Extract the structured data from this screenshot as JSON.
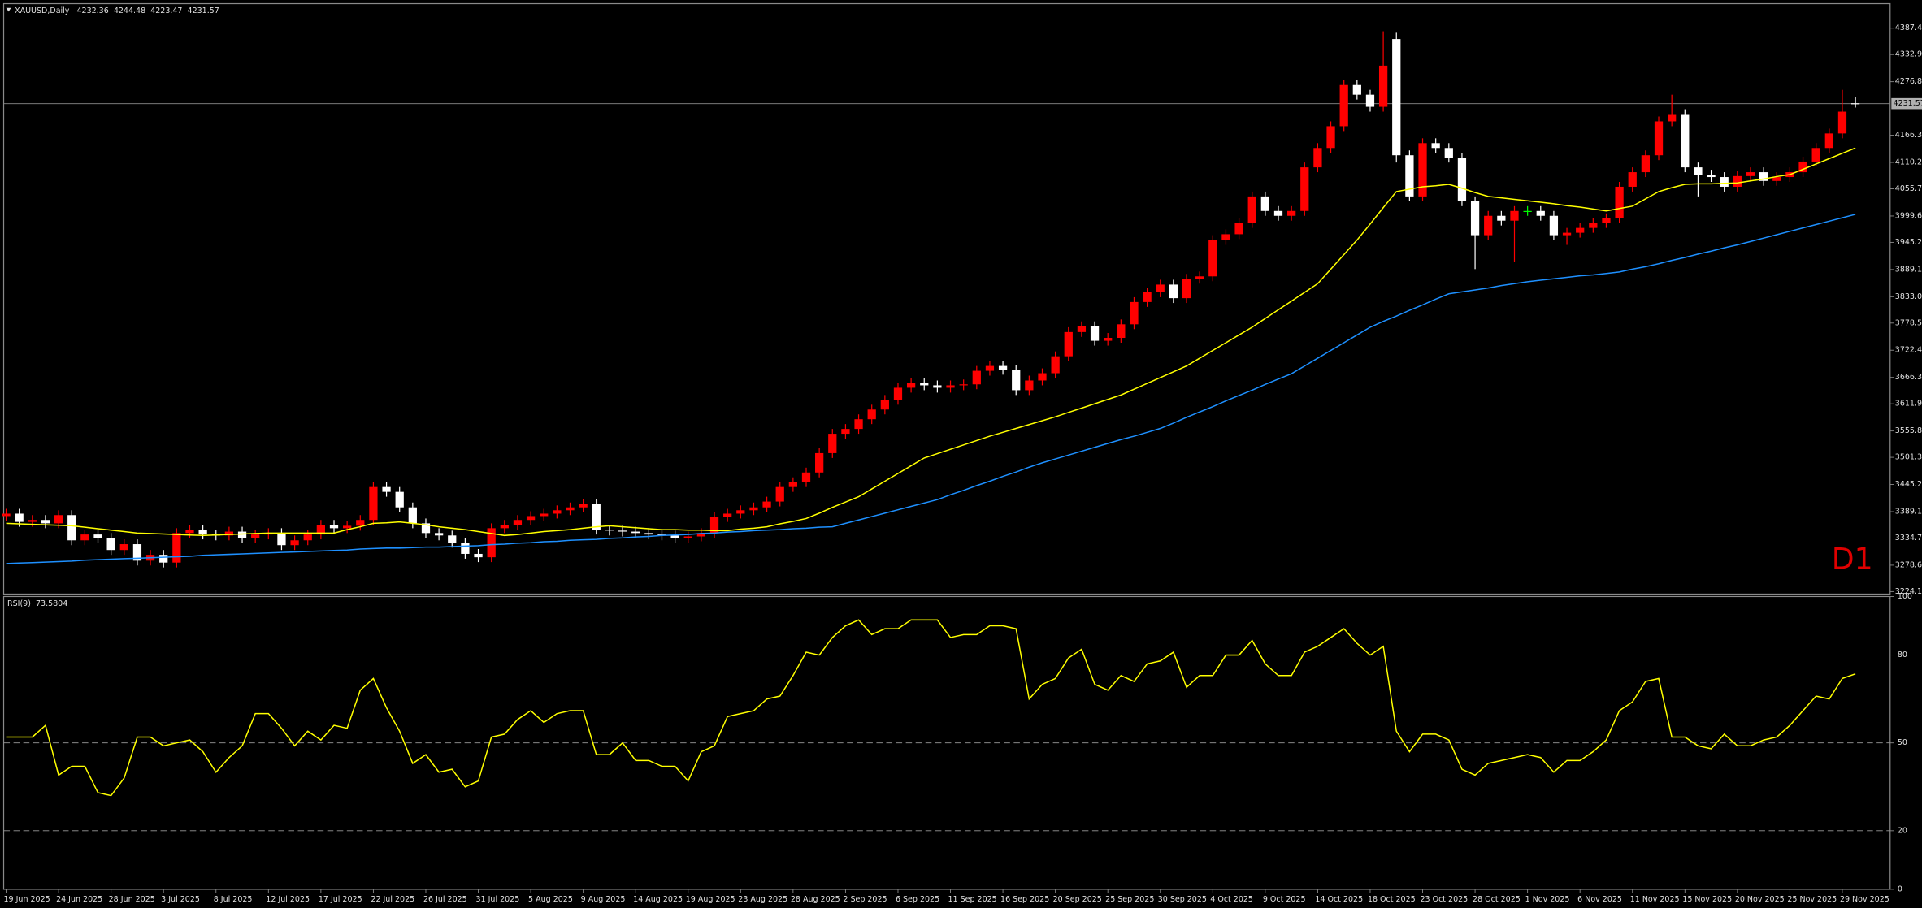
{
  "chart_data": [
    {
      "type": "candlestick",
      "title": "XAUUSD,Daily",
      "annotation": "D1",
      "annotation_color": "#e00000",
      "up_color": "#ff0000",
      "down_color": "#ffffff",
      "doji_color": "#00ff00",
      "last_price": 4231.57,
      "ylim": [
        3219,
        4433
      ],
      "yticks": [
        {
          "value": 4387.4,
          "label": "4387.40"
        },
        {
          "value": 4332.95,
          "label": "4332.95"
        },
        {
          "value": 4276.85,
          "label": "4276.85"
        },
        {
          "value": 4166.3,
          "label": "4166.30"
        },
        {
          "value": 4110.2,
          "label": "4110.20"
        },
        {
          "value": 4055.75,
          "label": "4055.75"
        },
        {
          "value": 3999.65,
          "label": "3999.65"
        },
        {
          "value": 3945.2,
          "label": "3945.20"
        },
        {
          "value": 3889.1,
          "label": "3889.10"
        },
        {
          "value": 3833,
          "label": "3833.00"
        },
        {
          "value": 3778.55,
          "label": "3778.55"
        },
        {
          "value": 3722.45,
          "label": "3722.45"
        },
        {
          "value": 3666.35,
          "label": "3666.35"
        },
        {
          "value": 3611.9,
          "label": "3611.90"
        },
        {
          "value": 3555.8,
          "label": "3555.80"
        },
        {
          "value": 3501.35,
          "label": "3501.35"
        },
        {
          "value": 3445.25,
          "label": "3445.25"
        },
        {
          "value": 3389.15,
          "label": "3389.15"
        },
        {
          "value": 3334.7,
          "label": "3334.70"
        },
        {
          "value": 3278.6,
          "label": "3278.60"
        },
        {
          "value": 3224.15,
          "label": "3224.15"
        }
      ],
      "categories": [
        "19 Jun 2025",
        null,
        null,
        null,
        "24 Jun 2025",
        null,
        null,
        null,
        "28 Jun 2025",
        null,
        null,
        null,
        "3 Jul 2025",
        null,
        null,
        null,
        "8 Jul 2025",
        null,
        null,
        null,
        "12 Jul 2025",
        null,
        null,
        null,
        "17 Jul 2025",
        null,
        null,
        null,
        "22 Jul 2025",
        null,
        null,
        null,
        "26 Jul 2025",
        null,
        null,
        null,
        "31 Jul 2025",
        null,
        null,
        null,
        "5 Aug 2025",
        null,
        null,
        null,
        "9 Aug 2025",
        null,
        null,
        null,
        "14 Aug 2025",
        null,
        null,
        null,
        "19 Aug 2025",
        null,
        null,
        null,
        "23 Aug 2025",
        null,
        null,
        null,
        "28 Aug 2025",
        null,
        null,
        null,
        "2 Sep 2025",
        null,
        null,
        null,
        "6 Sep 2025",
        null,
        null,
        null,
        "11 Sep 2025",
        null,
        null,
        null,
        "16 Sep 2025",
        null,
        null,
        null,
        "20 Sep 2025",
        null,
        null,
        null,
        "25 Sep 2025",
        null,
        null,
        null,
        "30 Sep 2025",
        null,
        null,
        null,
        "4 Oct 2025",
        null,
        null,
        null,
        "9 Oct 2025",
        null,
        null,
        null,
        "14 Oct 2025",
        null,
        null,
        null,
        "18 Oct 2025",
        null,
        null,
        null,
        "23 Oct 2025",
        null,
        null,
        null,
        "28 Oct 2025",
        null,
        null,
        null,
        "1 Nov 2025",
        null,
        null,
        null,
        "6 Nov 2025",
        null,
        null,
        null,
        "11 Nov 2025",
        null,
        null,
        null,
        "15 Nov 2025",
        null,
        null,
        null,
        "20 Nov 2025",
        null,
        null,
        null,
        "25 Nov 2025",
        null,
        null,
        null,
        "29 Nov 2025",
        null
      ],
      "open": [
        3380,
        3385,
        3368,
        3372,
        3365,
        3382,
        3330,
        3342,
        3335,
        3310,
        3322,
        3288,
        3300,
        3284,
        3345,
        3352,
        3342,
        3340,
        3348,
        3335,
        3342,
        3345,
        3320,
        3330,
        3342,
        3362,
        3355,
        3360,
        3372,
        3440,
        3430,
        3398,
        3365,
        3345,
        3340,
        3325,
        3302,
        3295,
        3355,
        3362,
        3372,
        3380,
        3385,
        3392,
        3398,
        3405,
        3352,
        3350,
        3348,
        3345,
        3342,
        3340,
        3335,
        3338,
        3345,
        3378,
        3385,
        3392,
        3398,
        3410,
        3440,
        3450,
        3470,
        3510,
        3550,
        3560,
        3580,
        3600,
        3620,
        3645,
        3655,
        3650,
        3645,
        3650,
        3652,
        3680,
        3690,
        3682,
        3640,
        3660,
        3675,
        3710,
        3760,
        3772,
        3742,
        3748,
        3776,
        3822,
        3842,
        3858,
        3830,
        3870,
        3875,
        3950,
        3962,
        3985,
        4040,
        4010,
        4000,
        4010,
        4100,
        4140,
        4185,
        4270,
        4250,
        4225,
        4365,
        4125,
        4040,
        4150,
        4140,
        4120,
        4030,
        3960,
        4000,
        3990,
        4010,
        4010,
        4000,
        3960,
        3965,
        3975,
        3985,
        3995,
        4060,
        4090,
        4125,
        4195,
        4210,
        4100,
        4085,
        4080,
        4060,
        4082,
        4090,
        4072,
        4080,
        4090,
        4112,
        4140,
        4170,
        4232.36
      ],
      "high": [
        3395,
        3395,
        3382,
        3382,
        3392,
        3392,
        3352,
        3352,
        3345,
        3332,
        3332,
        3310,
        3310,
        3355,
        3362,
        3362,
        3352,
        3358,
        3358,
        3352,
        3355,
        3355,
        3340,
        3352,
        3372,
        3372,
        3370,
        3382,
        3450,
        3450,
        3440,
        3408,
        3375,
        3355,
        3350,
        3335,
        3312,
        3365,
        3372,
        3382,
        3390,
        3395,
        3402,
        3408,
        3415,
        3415,
        3362,
        3360,
        3358,
        3355,
        3352,
        3350,
        3348,
        3355,
        3388,
        3395,
        3402,
        3408,
        3420,
        3450,
        3460,
        3480,
        3520,
        3560,
        3570,
        3590,
        3610,
        3630,
        3655,
        3665,
        3665,
        3660,
        3660,
        3662,
        3690,
        3700,
        3700,
        3692,
        3670,
        3685,
        3720,
        3770,
        3782,
        3782,
        3758,
        3786,
        3832,
        3852,
        3868,
        3868,
        3880,
        3885,
        3960,
        3972,
        3995,
        4050,
        4050,
        4020,
        4020,
        4110,
        4150,
        4195,
        4280,
        4280,
        4260,
        4381,
        4378,
        4135,
        4160,
        4160,
        4150,
        4130,
        4040,
        4010,
        4010,
        4020,
        4020,
        4020,
        4010,
        3975,
        3985,
        3995,
        4005,
        4070,
        4100,
        4135,
        4205,
        4250,
        4220,
        4110,
        4095,
        4090,
        4092,
        4100,
        4100,
        4090,
        4100,
        4122,
        4150,
        4180,
        4260,
        4244.48
      ],
      "low": [
        3370,
        3358,
        3358,
        3355,
        3355,
        3320,
        3320,
        3325,
        3300,
        3300,
        3278,
        3278,
        3274,
        3274,
        3335,
        3332,
        3330,
        3330,
        3325,
        3325,
        3332,
        3310,
        3310,
        3320,
        3332,
        3345,
        3345,
        3350,
        3362,
        3420,
        3388,
        3355,
        3335,
        3330,
        3315,
        3292,
        3285,
        3285,
        3345,
        3352,
        3362,
        3370,
        3375,
        3382,
        3388,
        3342,
        3340,
        3338,
        3335,
        3332,
        3330,
        3325,
        3325,
        3328,
        3335,
        3368,
        3375,
        3382,
        3388,
        3400,
        3430,
        3440,
        3460,
        3500,
        3540,
        3550,
        3570,
        3590,
        3610,
        3635,
        3640,
        3635,
        3635,
        3640,
        3642,
        3670,
        3672,
        3630,
        3630,
        3650,
        3665,
        3700,
        3750,
        3732,
        3732,
        3738,
        3766,
        3812,
        3832,
        3820,
        3820,
        3860,
        3865,
        3940,
        3952,
        3975,
        4000,
        3990,
        3990,
        4000,
        4090,
        4130,
        4175,
        4240,
        4215,
        4215,
        4110,
        4030,
        4030,
        4130,
        4110,
        4020,
        3890,
        3950,
        3980,
        3905,
        4000,
        3990,
        3950,
        3940,
        3955,
        3965,
        3975,
        3985,
        4050,
        4080,
        4115,
        4185,
        4090,
        4040,
        4070,
        4050,
        4050,
        4072,
        4062,
        4062,
        4070,
        4080,
        4102,
        4130,
        4160,
        4223.47
      ],
      "close": [
        3385,
        3368,
        3372,
        3365,
        3382,
        3330,
        3342,
        3335,
        3310,
        3322,
        3288,
        3300,
        3284,
        3345,
        3352,
        3342,
        3340,
        3348,
        3335,
        3342,
        3345,
        3320,
        3330,
        3342,
        3362,
        3355,
        3360,
        3372,
        3440,
        3430,
        3398,
        3365,
        3345,
        3340,
        3325,
        3302,
        3295,
        3355,
        3362,
        3372,
        3380,
        3385,
        3392,
        3398,
        3405,
        3352,
        3350,
        3348,
        3345,
        3342,
        3340,
        3335,
        3338,
        3345,
        3378,
        3385,
        3392,
        3398,
        3410,
        3440,
        3450,
        3470,
        3510,
        3550,
        3560,
        3580,
        3600,
        3620,
        3645,
        3655,
        3650,
        3645,
        3650,
        3652,
        3680,
        3690,
        3682,
        3640,
        3660,
        3675,
        3710,
        3760,
        3772,
        3742,
        3748,
        3776,
        3822,
        3842,
        3858,
        3830,
        3870,
        3875,
        3950,
        3962,
        3985,
        4040,
        4010,
        4000,
        4010,
        4100,
        4140,
        4185,
        4270,
        4250,
        4225,
        4310,
        4125,
        4040,
        4150,
        4140,
        4120,
        4030,
        3960,
        4000,
        3990,
        4010,
        4010,
        4000,
        3960,
        3965,
        3975,
        3985,
        3995,
        4060,
        4090,
        4125,
        4195,
        4210,
        4100,
        4085,
        4080,
        4060,
        4082,
        4090,
        4072,
        4080,
        4090,
        4112,
        4140,
        4170,
        4215,
        4231.57
      ],
      "moving_averages": [
        {
          "color": "#ffff00",
          "values": [
            3365,
            3364,
            3363,
            3362,
            3361,
            3360,
            3357,
            3354,
            3351,
            3348,
            3345,
            3344,
            3343,
            3342,
            3341,
            3340,
            3341,
            3342,
            3343,
            3344,
            3345,
            3345,
            3345,
            3345,
            3345,
            3345,
            3352,
            3358,
            3365,
            3366,
            3368,
            3365,
            3362,
            3358,
            3355,
            3352,
            3348,
            3344,
            3340,
            3342,
            3345,
            3348,
            3350,
            3352,
            3355,
            3358,
            3360,
            3358,
            3356,
            3354,
            3352,
            3352,
            3351,
            3351,
            3350,
            3350,
            3353,
            3355,
            3358,
            3364,
            3369,
            3375,
            3386,
            3398,
            3409,
            3420,
            3436,
            3452,
            3468,
            3484,
            3500,
            3509,
            3518,
            3527,
            3536,
            3545,
            3553,
            3561,
            3569,
            3577,
            3585,
            3594,
            3603,
            3612,
            3621,
            3630,
            3642,
            3654,
            3666,
            3678,
            3690,
            3706,
            3722,
            3738,
            3754,
            3770,
            3788,
            3806,
            3824,
            3842,
            3860,
            3890,
            3920,
            3950,
            3983,
            4017,
            4050,
            4055,
            4060,
            4062,
            4065,
            4057,
            4048,
            4040,
            4037,
            4034,
            4031,
            4028,
            4025,
            4021,
            4018,
            4014,
            4010,
            4015,
            4020,
            4035,
            4050,
            4058,
            4065,
            4066,
            4066,
            4067,
            4068,
            4072,
            4076,
            4081,
            4085,
            4096,
            4107,
            4118,
            4129,
            4140
          ]
        },
        {
          "color": "#1e90ff",
          "values": [
            3282,
            3283,
            3284,
            3285,
            3286,
            3287,
            3289,
            3290,
            3291,
            3292,
            3293,
            3294,
            3295,
            3296,
            3297,
            3299,
            3300,
            3301,
            3302,
            3303,
            3304,
            3305,
            3306,
            3307,
            3308,
            3309,
            3310,
            3312,
            3313,
            3314,
            3314,
            3315,
            3316,
            3316,
            3317,
            3318,
            3319,
            3321,
            3322,
            3324,
            3325,
            3327,
            3328,
            3330,
            3331,
            3332,
            3334,
            3335,
            3337,
            3338,
            3340,
            3341,
            3342,
            3344,
            3345,
            3347,
            3348,
            3350,
            3351,
            3352,
            3354,
            3355,
            3357,
            3358,
            3365,
            3372,
            3379,
            3386,
            3393,
            3400,
            3407,
            3414,
            3424,
            3433,
            3443,
            3452,
            3462,
            3471,
            3481,
            3490,
            3498,
            3506,
            3514,
            3522,
            3530,
            3538,
            3545,
            3553,
            3561,
            3572,
            3584,
            3595,
            3606,
            3618,
            3629,
            3640,
            3652,
            3663,
            3674,
            3690,
            3706,
            3722,
            3738,
            3754,
            3770,
            3782,
            3793,
            3805,
            3816,
            3828,
            3839,
            3843,
            3847,
            3851,
            3856,
            3860,
            3864,
            3867,
            3870,
            3873,
            3876,
            3878,
            3881,
            3884,
            3890,
            3895,
            3901,
            3908,
            3914,
            3921,
            3927,
            3934,
            3940,
            3947,
            3954,
            3961,
            3968,
            3975,
            3982,
            3989,
            3996,
            4003
          ]
        }
      ]
    },
    {
      "type": "line",
      "title": "RSI(9)",
      "color": "#ffff00",
      "ylim": [
        0,
        100
      ],
      "yticks": [
        100,
        80,
        50,
        20,
        0
      ],
      "levels": [
        80,
        50,
        20
      ],
      "values": [
        52,
        52,
        52,
        56,
        39,
        42,
        42,
        33,
        32,
        38,
        52,
        52,
        49,
        50,
        51,
        47,
        40,
        45,
        49,
        60,
        60,
        55,
        49,
        54,
        51,
        56,
        55,
        68,
        72,
        62,
        54,
        43,
        46,
        40,
        41,
        35,
        37,
        52,
        53,
        58,
        61,
        57,
        60,
        61,
        61,
        46,
        46,
        50,
        44,
        44,
        42,
        42,
        37,
        47,
        49,
        59,
        60,
        61,
        65,
        66,
        73,
        81,
        80,
        86,
        90,
        92,
        87,
        89,
        89,
        92,
        92,
        92,
        86,
        87,
        87,
        90,
        90,
        89,
        65,
        70,
        72,
        79,
        82,
        70,
        68,
        73,
        71,
        77,
        78,
        81,
        69,
        73,
        73,
        80,
        80,
        85,
        77,
        73,
        73,
        81,
        83,
        86,
        89,
        84,
        80,
        83,
        54,
        47,
        53,
        53,
        51,
        41,
        39,
        43,
        44,
        45,
        46,
        45,
        40,
        44,
        44,
        47,
        51,
        61,
        64,
        71,
        72,
        52,
        52,
        49,
        48,
        53,
        49,
        49,
        51,
        52,
        56,
        61,
        66,
        65,
        72,
        73.5804
      ]
    }
  ]
}
